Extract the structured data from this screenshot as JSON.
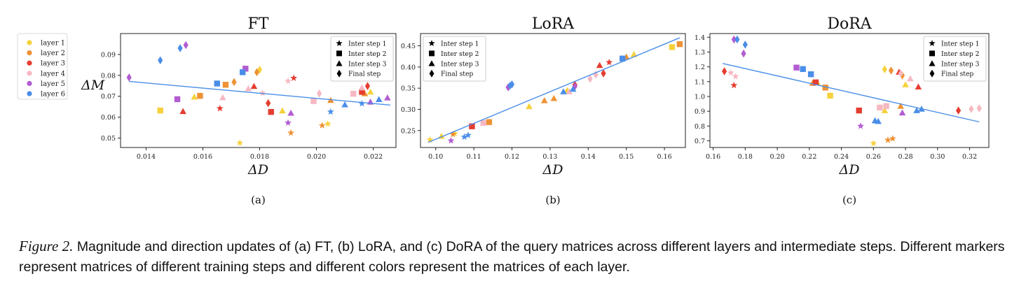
{
  "layer_legend": {
    "entries": [
      "layer 1",
      "layer 2",
      "layer 3",
      "layer 4",
      "layer 5",
      "layer 6"
    ],
    "colors": [
      "#f6d13c",
      "#ee9234",
      "#e53d2f",
      "#f6b8c2",
      "#b35cd1",
      "#4a8ee8"
    ]
  },
  "trend_color": "#4a8ee8",
  "ylabel_shared": "ΔM",
  "caption": {
    "label": "Figure 2.",
    "text": "Magnitude and direction updates of (a) FT, (b) LoRA, and (c) DoRA of the query matrices across different layers and intermediate steps. Different markers represent matrices of different training steps and different colors represent the matrices of each layer."
  },
  "chart_data": [
    {
      "type": "scatter",
      "title": "FT",
      "subtitle": "(a)",
      "xlabel": "ΔD",
      "ylabel": "ΔM",
      "xlim": [
        0.0131,
        0.0228
      ],
      "ylim": [
        0.0455,
        0.1
      ],
      "xticks": [
        0.014,
        0.016,
        0.018,
        0.02,
        0.022
      ],
      "xtick_labels": [
        "0.014",
        "0.016",
        "0.018",
        "0.020",
        "0.022"
      ],
      "yticks": [
        0.05,
        0.06,
        0.07,
        0.08,
        0.09
      ],
      "ytick_labels": [
        "0.05",
        "0.06",
        "0.07",
        "0.08",
        "0.09"
      ],
      "legend_position": "top-right",
      "legend": [
        "Inter step 1",
        "Inter step 2",
        "Inter step 3",
        "Final step"
      ],
      "trend": [
        [
          0.0134,
          0.0771
        ],
        [
          0.0226,
          0.0658
        ]
      ],
      "points": [
        [
          0.0145,
          0.0632,
          1,
          2
        ],
        [
          0.0157,
          0.0697,
          1,
          3
        ],
        [
          0.0173,
          0.0477,
          1,
          1
        ],
        [
          0.018,
          0.0827,
          1,
          4
        ],
        [
          0.0188,
          0.0631,
          1,
          3
        ],
        [
          0.0204,
          0.0568,
          1,
          1
        ],
        [
          0.0219,
          0.0721,
          1,
          3
        ],
        [
          0.0159,
          0.0702,
          2,
          2
        ],
        [
          0.0168,
          0.0755,
          2,
          2
        ],
        [
          0.0171,
          0.0768,
          2,
          4
        ],
        [
          0.0179,
          0.0815,
          2,
          4
        ],
        [
          0.0191,
          0.0525,
          2,
          1
        ],
        [
          0.0202,
          0.056,
          2,
          1
        ],
        [
          0.0205,
          0.0681,
          2,
          3
        ],
        [
          0.0217,
          0.0713,
          2,
          3
        ],
        [
          0.0153,
          0.0628,
          3,
          3
        ],
        [
          0.0166,
          0.0642,
          3,
          1
        ],
        [
          0.0178,
          0.0748,
          3,
          3
        ],
        [
          0.0183,
          0.0667,
          3,
          4
        ],
        [
          0.0184,
          0.0625,
          3,
          2
        ],
        [
          0.0192,
          0.0787,
          3,
          1
        ],
        [
          0.0216,
          0.0721,
          3,
          2
        ],
        [
          0.0218,
          0.0749,
          3,
          4
        ],
        [
          0.0167,
          0.0694,
          4,
          3
        ],
        [
          0.0176,
          0.0737,
          4,
          3
        ],
        [
          0.0181,
          0.0715,
          4,
          1
        ],
        [
          0.019,
          0.0773,
          4,
          1
        ],
        [
          0.0199,
          0.0677,
          4,
          2
        ],
        [
          0.0201,
          0.0713,
          4,
          4
        ],
        [
          0.0213,
          0.0712,
          4,
          2
        ],
        [
          0.0216,
          0.0741,
          4,
          3
        ],
        [
          0.0134,
          0.079,
          5,
          4
        ],
        [
          0.0151,
          0.0686,
          5,
          2
        ],
        [
          0.0154,
          0.0945,
          5,
          4
        ],
        [
          0.0175,
          0.0832,
          5,
          2
        ],
        [
          0.019,
          0.0573,
          5,
          1
        ],
        [
          0.0191,
          0.062,
          5,
          3
        ],
        [
          0.0219,
          0.0673,
          5,
          3
        ],
        [
          0.0225,
          0.0693,
          5,
          3
        ],
        [
          0.0145,
          0.0872,
          6,
          4
        ],
        [
          0.0152,
          0.093,
          6,
          4
        ],
        [
          0.0165,
          0.0761,
          6,
          2
        ],
        [
          0.0174,
          0.0815,
          6,
          2
        ],
        [
          0.0205,
          0.0626,
          6,
          1
        ],
        [
          0.021,
          0.066,
          6,
          3
        ],
        [
          0.0216,
          0.0665,
          6,
          1
        ],
        [
          0.0222,
          0.0685,
          6,
          3
        ]
      ]
    },
    {
      "type": "scatter",
      "title": "LoRA",
      "subtitle": "(b)",
      "xlabel": "ΔD",
      "ylabel": "",
      "xlim": [
        0.096,
        0.1655
      ],
      "ylim": [
        0.21,
        0.479
      ],
      "xticks": [
        0.1,
        0.11,
        0.12,
        0.13,
        0.14,
        0.15,
        0.16
      ],
      "xtick_labels": [
        "0.10",
        "0.11",
        "0.12",
        "0.13",
        "0.14",
        "0.15",
        "0.16"
      ],
      "yticks": [
        0.25,
        0.3,
        0.35,
        0.4,
        0.45
      ],
      "ytick_labels": [
        "0.25",
        "0.30",
        "0.35",
        "0.40",
        "0.45"
      ],
      "legend_position": "top-left",
      "legend": [
        "Inter step 1",
        "Inter step 2",
        "Inter step 3",
        "Final step"
      ],
      "trend": [
        [
          0.098,
          0.222
        ],
        [
          0.164,
          0.469
        ]
      ],
      "points": [
        [
          0.0985,
          0.228,
          1,
          1
        ],
        [
          0.1015,
          0.237,
          1,
          3
        ],
        [
          0.105,
          0.243,
          1,
          1
        ],
        [
          0.1245,
          0.307,
          1,
          3
        ],
        [
          0.1345,
          0.345,
          1,
          3
        ],
        [
          0.152,
          0.43,
          1,
          3
        ],
        [
          0.162,
          0.447,
          1,
          2
        ],
        [
          0.1045,
          0.241,
          2,
          1
        ],
        [
          0.114,
          0.27,
          2,
          2
        ],
        [
          0.1285,
          0.321,
          2,
          3
        ],
        [
          0.131,
          0.326,
          2,
          3
        ],
        [
          0.15,
          0.424,
          2,
          3
        ],
        [
          0.164,
          0.454,
          2,
          2
        ],
        [
          0.1095,
          0.26,
          3,
          2
        ],
        [
          0.1365,
          0.358,
          3,
          4
        ],
        [
          0.143,
          0.404,
          3,
          3
        ],
        [
          0.144,
          0.385,
          3,
          4
        ],
        [
          0.1455,
          0.411,
          3,
          1
        ],
        [
          0.1125,
          0.268,
          4,
          2
        ],
        [
          0.135,
          0.342,
          4,
          3
        ],
        [
          0.1405,
          0.372,
          4,
          4
        ],
        [
          0.142,
          0.382,
          4,
          4
        ],
        [
          0.104,
          0.226,
          5,
          1
        ],
        [
          0.119,
          0.352,
          5,
          4
        ],
        [
          0.1365,
          0.354,
          5,
          4
        ],
        [
          0.1075,
          0.235,
          6,
          1
        ],
        [
          0.1085,
          0.239,
          6,
          1
        ],
        [
          0.1195,
          0.356,
          6,
          4
        ],
        [
          0.12,
          0.359,
          6,
          4
        ],
        [
          0.1335,
          0.342,
          6,
          3
        ],
        [
          0.136,
          0.348,
          6,
          3
        ],
        [
          0.149,
          0.42,
          6,
          2
        ]
      ]
    },
    {
      "type": "scatter",
      "title": "DoRA",
      "subtitle": "(c)",
      "xlabel": "ΔD",
      "ylabel": "",
      "xlim": [
        0.158,
        0.332
      ],
      "ylim": [
        0.655,
        1.425
      ],
      "xticks": [
        0.16,
        0.18,
        0.2,
        0.22,
        0.24,
        0.26,
        0.28,
        0.3,
        0.32
      ],
      "xtick_labels": [
        "0.16",
        "0.18",
        "0.20",
        "0.22",
        "0.24",
        "0.26",
        "0.28",
        "0.30",
        "0.32"
      ],
      "yticks": [
        0.7,
        0.8,
        0.9,
        1.0,
        1.1,
        1.2,
        1.3,
        1.4
      ],
      "ytick_labels": [
        "0.7",
        "0.8",
        "0.9",
        "1.0",
        "1.1",
        "1.2",
        "1.3",
        "1.4"
      ],
      "legend_position": "top-right",
      "legend": [
        "Inter step 1",
        "Inter step 2",
        "Inter step 3",
        "Final step"
      ],
      "trend": [
        [
          0.166,
          1.223
        ],
        [
          0.326,
          0.828
        ]
      ],
      "points": [
        [
          0.225,
          1.095,
          1,
          3
        ],
        [
          0.233,
          1.005,
          1,
          2
        ],
        [
          0.26,
          0.683,
          1,
          1
        ],
        [
          0.267,
          0.905,
          1,
          3
        ],
        [
          0.267,
          1.183,
          1,
          4
        ],
        [
          0.28,
          1.08,
          1,
          3
        ],
        [
          0.222,
          1.09,
          2,
          3
        ],
        [
          0.23,
          1.06,
          2,
          2
        ],
        [
          0.269,
          0.705,
          2,
          1
        ],
        [
          0.272,
          0.715,
          2,
          1
        ],
        [
          0.271,
          1.175,
          2,
          4
        ],
        [
          0.277,
          0.935,
          2,
          3
        ],
        [
          0.278,
          1.142,
          2,
          4
        ],
        [
          0.167,
          1.17,
          3,
          4
        ],
        [
          0.173,
          1.075,
          3,
          1
        ],
        [
          0.224,
          1.095,
          3,
          2
        ],
        [
          0.251,
          0.905,
          3,
          2
        ],
        [
          0.276,
          1.165,
          3,
          3
        ],
        [
          0.288,
          1.065,
          3,
          3
        ],
        [
          0.313,
          0.905,
          3,
          4
        ],
        [
          0.171,
          1.16,
          4,
          1
        ],
        [
          0.174,
          1.135,
          4,
          1
        ],
        [
          0.264,
          0.925,
          4,
          2
        ],
        [
          0.268,
          0.935,
          4,
          2
        ],
        [
          0.277,
          1.155,
          4,
          4
        ],
        [
          0.283,
          1.12,
          4,
          3
        ],
        [
          0.321,
          0.915,
          4,
          4
        ],
        [
          0.326,
          0.92,
          4,
          4
        ],
        [
          0.173,
          1.385,
          5,
          4
        ],
        [
          0.179,
          1.29,
          5,
          4
        ],
        [
          0.212,
          1.195,
          5,
          2
        ],
        [
          0.252,
          0.8,
          5,
          1
        ],
        [
          0.278,
          0.89,
          5,
          3
        ],
        [
          0.175,
          1.385,
          6,
          4
        ],
        [
          0.18,
          1.35,
          6,
          4
        ],
        [
          0.216,
          1.185,
          6,
          2
        ],
        [
          0.221,
          1.15,
          6,
          2
        ],
        [
          0.261,
          0.837,
          6,
          3
        ],
        [
          0.263,
          0.832,
          6,
          3
        ],
        [
          0.287,
          0.905,
          6,
          3
        ],
        [
          0.29,
          0.915,
          6,
          3
        ]
      ]
    }
  ]
}
